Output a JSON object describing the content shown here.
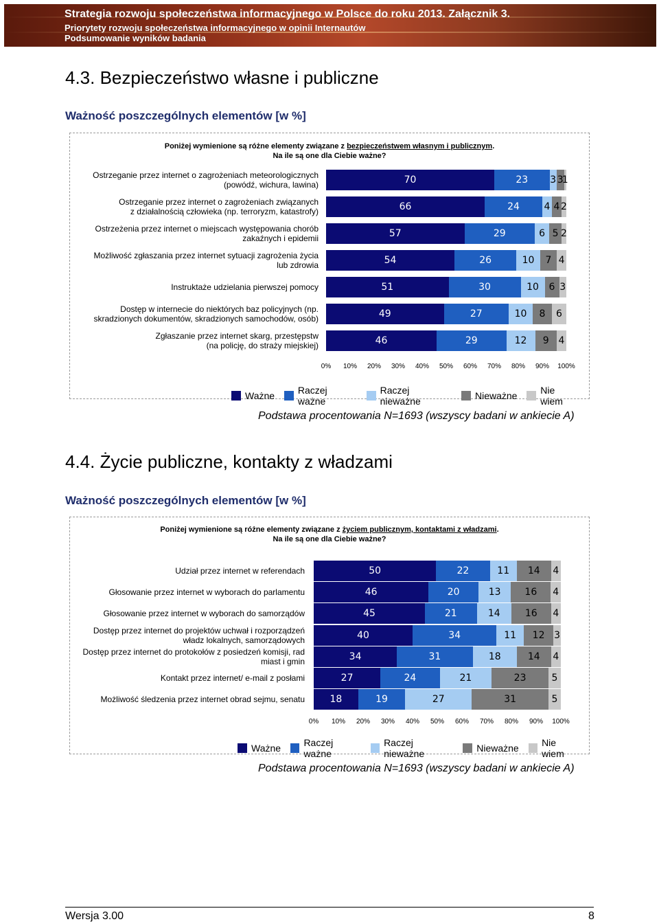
{
  "header": {
    "line1": "Strategia rozwoju społeczeństwa informacyjnego w Polsce do roku 2013. Załącznik 3.",
    "line2": "Priorytety rozwoju społeczeństwa informacyjnego w opinii Internautów",
    "line3": "Podsumowanie wyników badania"
  },
  "colors": {
    "wazne": "#0b0b73",
    "raczej_wazne": "#1f5fc0",
    "raczej_niewazne": "#a5ccf2",
    "niewazne": "#7a7a7a",
    "nie_wiem": "#c8c8c8"
  },
  "sections": [
    {
      "title": "4.3.   Bezpieczeństwo własne i publiczne",
      "subtitle": "Ważność poszczególnych elementów [w %]",
      "question_pre": "Poniżej  wymienione są różne elementy związane z ",
      "question_topic": "bezpieczeństwem własnym i publicznym",
      "question_post": ".",
      "question_line2": "Na ile są one dla Ciebie ważne?",
      "footnote": "Podstawa procentowania N=1693 (wszyscy badani w ankiecie A)"
    },
    {
      "title": "4.4.   Życie publiczne, kontakty z władzami",
      "subtitle": "Ważność poszczególnych elementów [w %]",
      "question_pre": "Poniżej  wymienione są różne elementy związane z ",
      "question_topic": "życiem publicznym, kontaktami z władzami",
      "question_post": ".",
      "question_line2": "Na ile są one dla Ciebie ważne?",
      "footnote": "Podstawa procentowania N=1693 (wszyscy badani w ankiecie A)"
    }
  ],
  "chart_data": [
    {
      "type": "bar",
      "orientation": "horizontal",
      "stacked": true,
      "x_ticks": [
        "0%",
        "10%",
        "20%",
        "30%",
        "40%",
        "50%",
        "60%",
        "70%",
        "80%",
        "90%",
        "100%"
      ],
      "xlim": [
        0,
        100
      ],
      "legend_position": "bottom",
      "series_names": [
        "Ważne",
        "Raczej ważne",
        "Raczej nieważne",
        "Nieważne",
        "Nie wiem"
      ],
      "categories": [
        [
          "Ostrzeganie przez internet o zagrożeniach meteorologicznych",
          "(powódź, wichura, lawina)"
        ],
        [
          "Ostrzeganie przez internet o zagrożeniach związanych",
          "z działalnością człowieka (np. terroryzm, katastrofy)"
        ],
        [
          "Ostrzeżenia przez internet o miejscach występowania chorób",
          "zakaźnych i epidemii"
        ],
        [
          "Możliwość zgłaszania przez internet sytuacji zagrożenia życia",
          "lub zdrowia"
        ],
        [
          "Instruktaże udzielania pierwszej pomocy"
        ],
        [
          "Dostęp w internecie do niektórych baz policyjnych (np.",
          "skradzionych dokumentów, skradzionych samochodów, osób)"
        ],
        [
          "Zgłaszanie przez internet skarg, przestępstw",
          "(na policję, do straży miejskiej)"
        ]
      ],
      "values": [
        [
          70,
          23,
          3,
          3,
          1
        ],
        [
          66,
          24,
          4,
          4,
          2
        ],
        [
          57,
          29,
          6,
          5,
          2
        ],
        [
          54,
          26,
          10,
          7,
          4
        ],
        [
          51,
          30,
          10,
          6,
          3
        ],
        [
          49,
          27,
          10,
          8,
          6
        ],
        [
          46,
          29,
          12,
          9,
          4
        ]
      ]
    },
    {
      "type": "bar",
      "orientation": "horizontal",
      "stacked": true,
      "x_ticks": [
        "0%",
        "10%",
        "20%",
        "30%",
        "40%",
        "50%",
        "60%",
        "70%",
        "80%",
        "90%",
        "100%"
      ],
      "xlim": [
        0,
        100
      ],
      "legend_position": "bottom",
      "series_names": [
        "Ważne",
        "Raczej ważne",
        "Raczej nieważne",
        "Nieważne",
        "Nie wiem"
      ],
      "categories": [
        [
          "Udział przez internet w referendach"
        ],
        [
          "Głosowanie przez internet w wyborach do parlamentu"
        ],
        [
          "Głosowanie przez internet w wyborach do samorządów"
        ],
        [
          "Dostęp przez internet do projektów uchwał i rozporządzeń",
          "władz lokalnych, samorządowych"
        ],
        [
          "Dostęp przez internet do protokołów z posiedzeń komisji, rad",
          "miast i gmin"
        ],
        [
          "Kontakt przez internet/ e-mail z posłami"
        ],
        [
          "Możliwość śledzenia przez internet obrad sejmu, senatu"
        ]
      ],
      "values": [
        [
          50,
          22,
          11,
          14,
          4
        ],
        [
          46,
          20,
          13,
          16,
          4
        ],
        [
          45,
          21,
          14,
          16,
          4
        ],
        [
          40,
          34,
          11,
          12,
          3
        ],
        [
          34,
          31,
          18,
          14,
          4
        ],
        [
          27,
          24,
          21,
          23,
          5
        ],
        [
          18,
          19,
          27,
          31,
          5
        ]
      ]
    }
  ],
  "footer": {
    "version": "Wersja 3.00",
    "page": "8"
  }
}
